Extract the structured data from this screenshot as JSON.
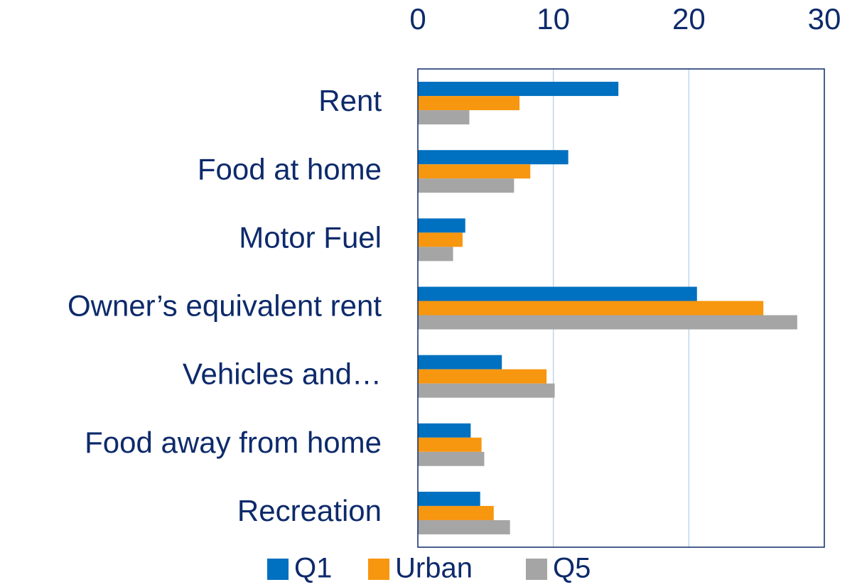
{
  "chart_data": {
    "type": "bar",
    "orientation": "horizontal",
    "categories": [
      "Rent",
      "Food at home",
      "Motor Fuel",
      "Owner’s equivalent rent",
      "Vehicles and…",
      "Food away from home",
      "Recreation"
    ],
    "series": [
      {
        "name": "Q1",
        "color": "#0070c0",
        "values": [
          14.8,
          11.1,
          3.5,
          20.6,
          6.2,
          3.9,
          4.6
        ]
      },
      {
        "name": "Urban",
        "color": "#f7960f",
        "values": [
          7.5,
          8.3,
          3.3,
          25.5,
          9.5,
          4.7,
          5.6
        ]
      },
      {
        "name": "Q5",
        "color": "#a5a5a5",
        "values": [
          3.8,
          7.1,
          2.6,
          28.0,
          10.1,
          4.9,
          6.8
        ]
      }
    ],
    "xlim": [
      0,
      30
    ],
    "xticks": [
      0,
      10,
      20,
      30
    ],
    "grid": true,
    "legend": "bottom"
  }
}
